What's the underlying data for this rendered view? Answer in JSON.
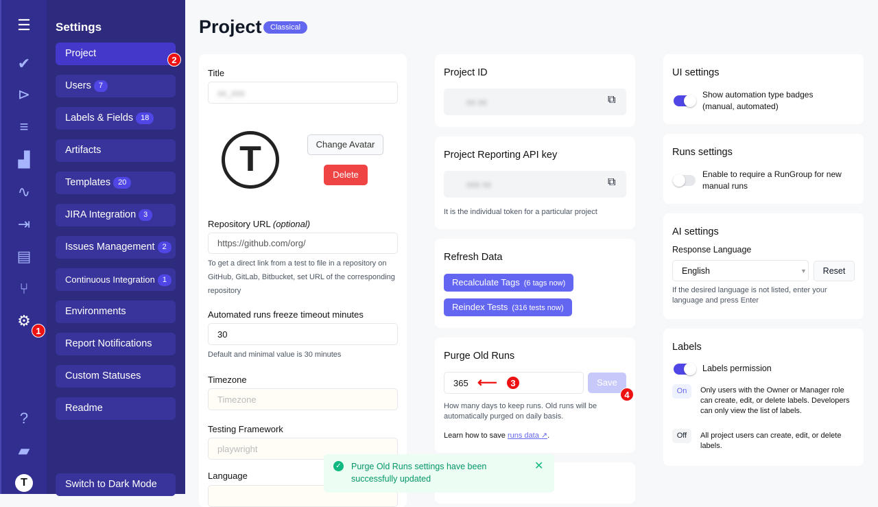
{
  "sidebar": {
    "icons": [
      "menu-icon",
      "check-icon",
      "play-circle-icon",
      "checklist-icon",
      "steps-icon",
      "pulse-icon",
      "import-icon",
      "chart-icon",
      "branch-icon",
      "gear-icon",
      "help-icon",
      "folder-icon",
      "logo-icon"
    ],
    "title": "Settings",
    "items": [
      {
        "label": "Project"
      },
      {
        "label": "Users",
        "count": "7"
      },
      {
        "label": "Labels & Fields",
        "count": "18"
      },
      {
        "label": "Artifacts"
      },
      {
        "label": "Templates",
        "count": "20"
      },
      {
        "label": "JIRA Integration",
        "count": "3"
      },
      {
        "label": "Issues Management",
        "count": "2"
      },
      {
        "label": "Continuous Integration",
        "count": "1"
      },
      {
        "label": "Environments"
      },
      {
        "label": "Report Notifications"
      },
      {
        "label": "Custom Statuses"
      },
      {
        "label": "Readme"
      }
    ],
    "dark_mode": "Switch to Dark Mode"
  },
  "markers": [
    "1",
    "2",
    "3",
    "4"
  ],
  "header": {
    "title": "Project",
    "badge": "Classical"
  },
  "project": {
    "title_label": "Title",
    "change_avatar": "Change Avatar",
    "delete": "Delete",
    "repo_label": "Repository URL",
    "repo_optional": "(optional)",
    "repo_value": "https://github.com/org/",
    "repo_hint": "To get a direct link from a test to file in a repository on GitHub, GitLab, Bitbucket, set URL of the corresponding repository",
    "freeze_label": "Automated runs freeze timeout minutes",
    "freeze_value": "30",
    "freeze_hint": "Default and minimal value is 30 minutes",
    "tz_label": "Timezone",
    "tz_placeholder": "Timezone",
    "fw_label": "Testing Framework",
    "fw_placeholder": "playwright",
    "lang_label": "Language"
  },
  "project_id": {
    "title": "Project ID"
  },
  "api_key": {
    "title": "Project Reporting API key",
    "hint": "It is the individual token for a particular project"
  },
  "refresh": {
    "title": "Refresh Data",
    "recalc": "Recalculate Tags",
    "recalc_count": "(6 tags now)",
    "reindex": "Reindex Tests",
    "reindex_count": "(316 tests now)"
  },
  "purge": {
    "title": "Purge Old Runs",
    "value": "365",
    "save": "Save",
    "hint": "How many days to keep runs. Old runs will be automatically purged on daily basis.",
    "learn": "Learn how to save",
    "link": "runs data",
    "dot": "."
  },
  "toast": {
    "message": "Purge Old Runs settings have been successfully updated"
  },
  "ui": {
    "title": "UI settings",
    "toggle_label": "Show automation type badges (manual, automated)",
    "on": true
  },
  "runs": {
    "title": "Runs settings",
    "toggle_label": "Enable to require a RunGroup for new manual runs",
    "on": false
  },
  "ai": {
    "title": "AI settings",
    "lang_label": "Response Language",
    "lang_value": "English",
    "reset": "Reset",
    "hint": "If the desired language is not listed, enter your language and press Enter"
  },
  "labels": {
    "title": "Labels",
    "toggle_label": "Labels permission",
    "on": true,
    "on_tag": "On",
    "on_desc": "Only users with the Owner or Manager role can create, edit, or delete labels. Developers can only view the list of labels.",
    "off_tag": "Off",
    "off_desc": "All project users can create, edit, or delete labels."
  },
  "colors": {
    "accent": "#6366f1",
    "danger": "#ef4444",
    "success": "#10b981"
  }
}
